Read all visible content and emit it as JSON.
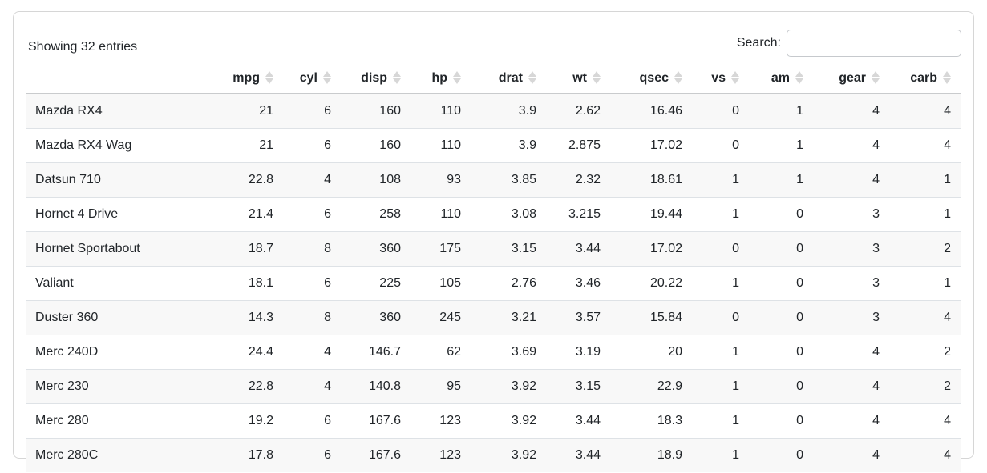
{
  "toolbar": {
    "showing_text": "Showing 32 entries",
    "search_label": "Search:",
    "search_value": "",
    "search_placeholder": ""
  },
  "table": {
    "row_name_header": "",
    "columns": [
      "mpg",
      "cyl",
      "disp",
      "hp",
      "drat",
      "wt",
      "qsec",
      "vs",
      "am",
      "gear",
      "carb"
    ],
    "rows": [
      {
        "name": "Mazda RX4",
        "values": [
          "21",
          "6",
          "160",
          "110",
          "3.9",
          "2.62",
          "16.46",
          "0",
          "1",
          "4",
          "4"
        ]
      },
      {
        "name": "Mazda RX4 Wag",
        "values": [
          "21",
          "6",
          "160",
          "110",
          "3.9",
          "2.875",
          "17.02",
          "0",
          "1",
          "4",
          "4"
        ]
      },
      {
        "name": "Datsun 710",
        "values": [
          "22.8",
          "4",
          "108",
          "93",
          "3.85",
          "2.32",
          "18.61",
          "1",
          "1",
          "4",
          "1"
        ]
      },
      {
        "name": "Hornet 4 Drive",
        "values": [
          "21.4",
          "6",
          "258",
          "110",
          "3.08",
          "3.215",
          "19.44",
          "1",
          "0",
          "3",
          "1"
        ]
      },
      {
        "name": "Hornet Sportabout",
        "values": [
          "18.7",
          "8",
          "360",
          "175",
          "3.15",
          "3.44",
          "17.02",
          "0",
          "0",
          "3",
          "2"
        ]
      },
      {
        "name": "Valiant",
        "values": [
          "18.1",
          "6",
          "225",
          "105",
          "2.76",
          "3.46",
          "20.22",
          "1",
          "0",
          "3",
          "1"
        ]
      },
      {
        "name": "Duster 360",
        "values": [
          "14.3",
          "8",
          "360",
          "245",
          "3.21",
          "3.57",
          "15.84",
          "0",
          "0",
          "3",
          "4"
        ]
      },
      {
        "name": "Merc 240D",
        "values": [
          "24.4",
          "4",
          "146.7",
          "62",
          "3.69",
          "3.19",
          "20",
          "1",
          "0",
          "4",
          "2"
        ]
      },
      {
        "name": "Merc 230",
        "values": [
          "22.8",
          "4",
          "140.8",
          "95",
          "3.92",
          "3.15",
          "22.9",
          "1",
          "0",
          "4",
          "2"
        ]
      },
      {
        "name": "Merc 280",
        "values": [
          "19.2",
          "6",
          "167.6",
          "123",
          "3.92",
          "3.44",
          "18.3",
          "1",
          "0",
          "4",
          "4"
        ]
      },
      {
        "name": "Merc 280C",
        "values": [
          "17.8",
          "6",
          "167.6",
          "123",
          "3.92",
          "3.44",
          "18.9",
          "1",
          "0",
          "4",
          "4"
        ]
      }
    ]
  },
  "colors": {
    "text": "#212529",
    "stripe": "#f8f8f8",
    "row_border": "#dee2e6",
    "header_border": "#c9cbcd",
    "card_border": "#d6d6d6",
    "sort_icon": "#d7d7d7"
  }
}
